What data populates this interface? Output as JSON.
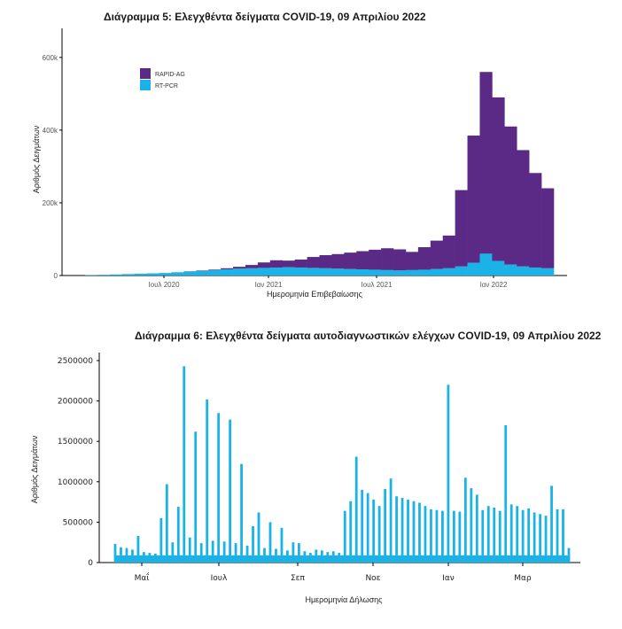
{
  "chart_data": [
    {
      "type": "bar",
      "stacked": true,
      "title": "Διάγραμμα 5: Ελεγχθέντα δείγματα COVID-19, 09 Απριλίου 2022",
      "xlabel": "Ημερομηνία Επιβεβαίωσης",
      "ylabel": "Αριθμός Δειγμάτων",
      "x_ticks": [
        "Ιουλ 2020",
        "Ιαν 2021",
        "Ιουλ 2021",
        "Ιαν 2022"
      ],
      "y_ticks": [
        "0",
        "200k",
        "400k",
        "600k"
      ],
      "ylim": [
        0,
        680000
      ],
      "grid": false,
      "legend_position": "top-left",
      "colors": {
        "rapid": "#5b2a86",
        "pcr": "#1ab3e8"
      },
      "series": [
        {
          "name": "RAPID-AG",
          "values": [
            0,
            0,
            0,
            0,
            0,
            0,
            0,
            0,
            500,
            1000,
            1500,
            3000,
            5000,
            9000,
            15000,
            20000,
            18000,
            22000,
            30000,
            36000,
            40000,
            45000,
            50000,
            55000,
            60000,
            58000,
            50000,
            62000,
            78000,
            90000,
            210000,
            350000,
            500000,
            450000,
            380000,
            320000,
            260000,
            220000
          ]
        },
        {
          "name": "RT-PCR",
          "values": [
            1000,
            2000,
            3000,
            4000,
            5000,
            6000,
            7000,
            9000,
            11000,
            13000,
            15000,
            17000,
            19000,
            20000,
            21000,
            22000,
            23000,
            22000,
            21000,
            20000,
            19000,
            18000,
            17000,
            16000,
            15000,
            14000,
            15000,
            16000,
            18000,
            20000,
            25000,
            35000,
            60000,
            40000,
            30000,
            25000,
            22000,
            20000
          ]
        }
      ]
    },
    {
      "type": "bar",
      "title": "Διάγραμμα 6: Ελεγχθέντα δείγματα αυτοδιαγνωστικών ελέγχων COVID-19, 09 Απριλίου 2022",
      "xlabel": "Ημερομηνία Δήλωσης",
      "ylabel": "Αριθμός Δειγμάτων",
      "x_ticks": [
        "Μαΐ",
        "Ιουλ",
        "Σεπ",
        "Νοε",
        "Ιαν",
        "Μαρ"
      ],
      "y_ticks": [
        "0",
        "500000",
        "1000000",
        "1500000",
        "2000000",
        "2500000"
      ],
      "ylim": [
        0,
        2500000
      ],
      "grid": false,
      "color": "#1ab3e8",
      "series": [
        {
          "name": "",
          "values": [
            230000,
            190000,
            180000,
            160000,
            330000,
            130000,
            120000,
            110000,
            550000,
            970000,
            250000,
            690000,
            2430000,
            310000,
            1620000,
            240000,
            2020000,
            270000,
            1850000,
            260000,
            1770000,
            240000,
            1220000,
            210000,
            450000,
            620000,
            180000,
            500000,
            170000,
            430000,
            150000,
            250000,
            240000,
            140000,
            120000,
            160000,
            150000,
            130000,
            140000,
            120000,
            640000,
            760000,
            1310000,
            900000,
            860000,
            780000,
            700000,
            910000,
            1040000,
            820000,
            800000,
            780000,
            760000,
            740000,
            700000,
            660000,
            650000,
            640000,
            2200000,
            640000,
            630000,
            1050000,
            920000,
            840000,
            650000,
            700000,
            680000,
            640000,
            1700000,
            720000,
            700000,
            650000,
            670000,
            620000,
            600000,
            580000,
            950000,
            660000,
            660000,
            180000
          ]
        }
      ]
    }
  ]
}
